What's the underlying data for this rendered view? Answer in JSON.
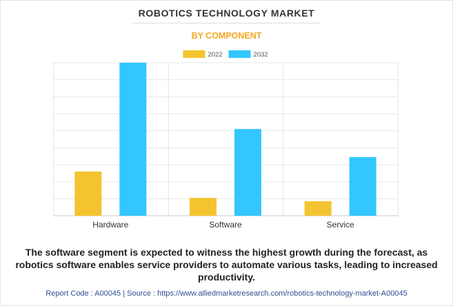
{
  "title": "ROBOTICS TECHNOLOGY MARKET",
  "subtitle": "BY COMPONENT",
  "colors": {
    "accent": "#f5a623",
    "series_2022": "#f4c430",
    "series_2032": "#33c6ff",
    "grid": "#e6e6e6"
  },
  "chart_data": {
    "type": "bar",
    "categories": [
      "Hardware",
      "Software",
      "Service"
    ],
    "series": [
      {
        "name": "2022",
        "values": [
          26,
          10.5,
          8.5
        ]
      },
      {
        "name": "2032",
        "values": [
          90,
          51,
          34.5
        ]
      }
    ],
    "ylim": [
      0,
      90
    ],
    "grid": true,
    "legend": "top-center"
  },
  "caption": "The software segment is expected to witness the highest growth during the forecast, as robotics software enables service providers to automate various tasks, leading to increased productivity.",
  "footer": "Report Code : A00045  |  Source : https://www.alliedmarketresearch.com/robotics-technology-market-A00045"
}
